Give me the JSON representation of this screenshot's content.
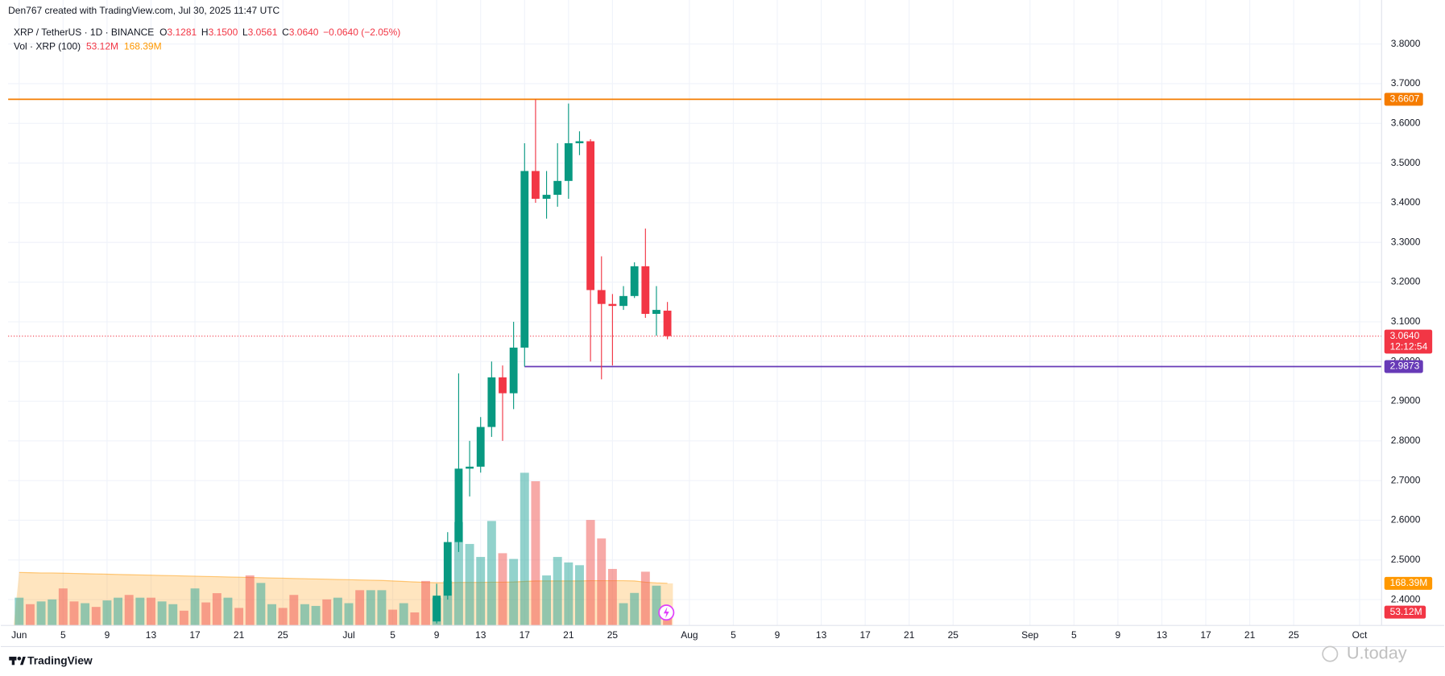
{
  "chart_data": {
    "type": "candlestick",
    "credit": "Den767 created with TradingView.com, Jul 30, 2025 11:47 UTC",
    "legend": {
      "symbol": "XRP / TetherUS · 1D · BINANCE",
      "open_key": "O",
      "open": 3.1281,
      "high_key": "H",
      "high": {
        "value": 3.15,
        "label": "3.1500"
      },
      "low_key": "L",
      "low": 3.0561,
      "close_key": "C",
      "close": {
        "value": 3.064,
        "label": "3.0640"
      },
      "change": "−0.0640 (−2.05%)",
      "volume_name": "Vol · XRP (100)"
    },
    "x": [
      "2025-07-09",
      "2025-07-10",
      "2025-07-11",
      "2025-07-12",
      "2025-07-13",
      "2025-07-14",
      "2025-07-15",
      "2025-07-16",
      "2025-07-17",
      "2025-07-18",
      "2025-07-19",
      "2025-07-20",
      "2025-07-21",
      "2025-07-22",
      "2025-07-23",
      "2025-07-24",
      "2025-07-25",
      "2025-07-26",
      "2025-07-27",
      "2025-07-28",
      "2025-07-29",
      "2025-07-30"
    ],
    "open": [
      2.345,
      2.41,
      2.545,
      2.73,
      2.735,
      2.835,
      2.96,
      2.92,
      3.035,
      3.48,
      3.41,
      3.42,
      3.455,
      3.55,
      3.555,
      3.18,
      3.145,
      3.14,
      3.165,
      3.24,
      3.12,
      3.1281
    ],
    "high": [
      2.44,
      2.57,
      2.97,
      2.8,
      2.86,
      3.0,
      2.99,
      3.1,
      3.55,
      3.6607,
      3.48,
      3.55,
      3.65,
      3.58,
      3.56,
      3.265,
      3.17,
      3.19,
      3.25,
      3.335,
      3.19,
      3.15
    ],
    "low": [
      2.34,
      2.4,
      2.52,
      2.66,
      2.72,
      2.81,
      2.8,
      2.88,
      2.9873,
      3.4,
      3.36,
      3.39,
      3.41,
      3.52,
      3.0,
      2.955,
      2.99,
      3.13,
      3.16,
      3.11,
      3.065,
      3.0561
    ],
    "close": [
      2.41,
      2.545,
      2.73,
      2.735,
      2.835,
      2.96,
      2.92,
      3.035,
      3.48,
      3.41,
      3.42,
      3.455,
      3.55,
      3.555,
      3.18,
      3.145,
      3.14,
      3.165,
      3.24,
      3.12,
      3.13,
      3.064
    ],
    "up_color": "#089981",
    "down_color": "#f23645",
    "volume": {
      "x": [
        "2025-06-01",
        "2025-06-02",
        "2025-06-03",
        "2025-06-04",
        "2025-06-05",
        "2025-06-06",
        "2025-06-07",
        "2025-06-08",
        "2025-06-09",
        "2025-06-10",
        "2025-06-11",
        "2025-06-12",
        "2025-06-13",
        "2025-06-14",
        "2025-06-15",
        "2025-06-16",
        "2025-06-17",
        "2025-06-18",
        "2025-06-19",
        "2025-06-20",
        "2025-06-21",
        "2025-06-22",
        "2025-06-23",
        "2025-06-24",
        "2025-06-25",
        "2025-06-26",
        "2025-06-27",
        "2025-06-28",
        "2025-06-29",
        "2025-06-30",
        "2025-07-01",
        "2025-07-02",
        "2025-07-03",
        "2025-07-04",
        "2025-07-05",
        "2025-07-06",
        "2025-07-07",
        "2025-07-08",
        "2025-07-09",
        "2025-07-10",
        "2025-07-11",
        "2025-07-12",
        "2025-07-13",
        "2025-07-14",
        "2025-07-15",
        "2025-07-16",
        "2025-07-17",
        "2025-07-18",
        "2025-07-19",
        "2025-07-20",
        "2025-07-21",
        "2025-07-22",
        "2025-07-23",
        "2025-07-24",
        "2025-07-25",
        "2025-07-26",
        "2025-07-27",
        "2025-07-28",
        "2025-07-29",
        "2025-07-30"
      ],
      "values": [
        111,
        85,
        96,
        104,
        148,
        96,
        89,
        74,
        100,
        111,
        122,
        111,
        111,
        96,
        85,
        59,
        148,
        92,
        129,
        111,
        70,
        200,
        170,
        85,
        70,
        122,
        85,
        78,
        104,
        111,
        89,
        141,
        141,
        141,
        63,
        89,
        52,
        178,
        111,
        178,
        414,
        326,
        274,
        418,
        289,
        266,
        611,
        577,
        200,
        274,
        252,
        241,
        422,
        348,
        226,
        89,
        130,
        215,
        159,
        53.12
      ],
      "colors": [
        "#26a69a",
        "#ef5350",
        "#26a69a",
        "#26a69a",
        "#ef5350",
        "#ef5350",
        "#26a69a",
        "#ef5350",
        "#26a69a",
        "#26a69a",
        "#ef5350",
        "#26a69a",
        "#ef5350",
        "#26a69a",
        "#26a69a",
        "#ef5350",
        "#26a69a",
        "#ef5350",
        "#ef5350",
        "#26a69a",
        "#ef5350",
        "#ef5350",
        "#26a69a",
        "#26a69a",
        "#ef5350",
        "#ef5350",
        "#26a69a",
        "#26a69a",
        "#ef5350",
        "#26a69a",
        "#26a69a",
        "#ef5350",
        "#26a69a",
        "#26a69a",
        "#ef5350",
        "#26a69a",
        "#ef5350",
        "#ef5350",
        "#26a69a",
        "#26a69a",
        "#26a69a",
        "#26a69a",
        "#26a69a",
        "#26a69a",
        "#ef5350",
        "#26a69a",
        "#26a69a",
        "#ef5350",
        "#26a69a",
        "#26a69a",
        "#26a69a",
        "#26a69a",
        "#ef5350",
        "#ef5350",
        "#ef5350",
        "#26a69a",
        "#26a69a",
        "#ef5350",
        "#26a69a",
        "#ef5350"
      ],
      "value_label": "53.12M",
      "ma": {
        "color": "#ff9800",
        "value_label": "168.39M",
        "values": [
          212,
          211,
          210,
          210,
          209,
          208,
          207,
          206,
          205,
          204,
          203,
          202,
          201,
          200,
          199,
          198,
          197,
          196,
          195,
          194,
          193,
          192,
          191,
          190,
          189,
          188,
          187,
          186,
          185,
          184,
          183,
          182,
          181,
          180,
          178,
          176,
          174,
          172,
          171,
          171,
          172,
          172,
          172,
          173,
          173,
          174,
          176,
          178,
          178,
          178,
          178,
          178,
          179,
          179,
          179,
          179,
          178,
          173,
          170,
          168.39
        ]
      }
    },
    "ylim": [
      2.335,
      3.846
    ],
    "y2lim": [
      0,
      2400
    ],
    "xlim": [
      "2025-05-31",
      "2025-10-03"
    ],
    "yticks": [
      {
        "value": 2.4,
        "label": "2.4000"
      },
      {
        "value": 2.5,
        "label": "2.5000"
      },
      {
        "value": 2.6,
        "label": "2.6000"
      },
      {
        "value": 2.7,
        "label": "2.7000"
      },
      {
        "value": 2.8,
        "label": "2.8000"
      },
      {
        "value": 2.9,
        "label": "2.9000"
      },
      {
        "value": 3.0,
        "label": "3.0000"
      },
      {
        "value": 3.1,
        "label": "3.1000"
      },
      {
        "value": 3.2,
        "label": "3.2000"
      },
      {
        "value": 3.3,
        "label": "3.3000"
      },
      {
        "value": 3.4,
        "label": "3.4000"
      },
      {
        "value": 3.5,
        "label": "3.5000"
      },
      {
        "value": 3.6,
        "label": "3.6000"
      },
      {
        "value": 3.7,
        "label": "3.7000"
      },
      {
        "value": 3.8,
        "label": "3.8000"
      }
    ],
    "xticks": [
      {
        "value": "2025-06-01",
        "label": "Jun"
      },
      {
        "value": "2025-06-05",
        "label": "5"
      },
      {
        "value": "2025-06-09",
        "label": "9"
      },
      {
        "value": "2025-06-13",
        "label": "13"
      },
      {
        "value": "2025-06-17",
        "label": "17"
      },
      {
        "value": "2025-06-21",
        "label": "21"
      },
      {
        "value": "2025-06-25",
        "label": "25"
      },
      {
        "value": "2025-07-01",
        "label": "Jul"
      },
      {
        "value": "2025-07-05",
        "label": "5"
      },
      {
        "value": "2025-07-09",
        "label": "9"
      },
      {
        "value": "2025-07-13",
        "label": "13"
      },
      {
        "value": "2025-07-17",
        "label": "17"
      },
      {
        "value": "2025-07-21",
        "label": "21"
      },
      {
        "value": "2025-07-25",
        "label": "25"
      },
      {
        "value": "2025-08-01",
        "label": "Aug"
      },
      {
        "value": "2025-08-05",
        "label": "5"
      },
      {
        "value": "2025-08-09",
        "label": "9"
      },
      {
        "value": "2025-08-13",
        "label": "13"
      },
      {
        "value": "2025-08-17",
        "label": "17"
      },
      {
        "value": "2025-08-21",
        "label": "21"
      },
      {
        "value": "2025-08-25",
        "label": "25"
      },
      {
        "value": "2025-09-01",
        "label": "Sep"
      },
      {
        "value": "2025-09-05",
        "label": "5"
      },
      {
        "value": "2025-09-09",
        "label": "9"
      },
      {
        "value": "2025-09-13",
        "label": "13"
      },
      {
        "value": "2025-09-17",
        "label": "17"
      },
      {
        "value": "2025-09-21",
        "label": "21"
      },
      {
        "value": "2025-09-25",
        "label": "25"
      },
      {
        "value": "2025-10-01",
        "label": "Oct"
      }
    ],
    "grid": true,
    "levels": [
      {
        "value": 3.6607,
        "color": "#f57c00"
      },
      {
        "value": 2.9873,
        "color": "#673ab7",
        "from": "2025-07-17"
      }
    ],
    "last": {
      "value": 3.064,
      "label": "3.0640",
      "countdown": "12:12:54",
      "color": "#f23645"
    },
    "branding": "TradingView",
    "watermark": "U.today"
  }
}
